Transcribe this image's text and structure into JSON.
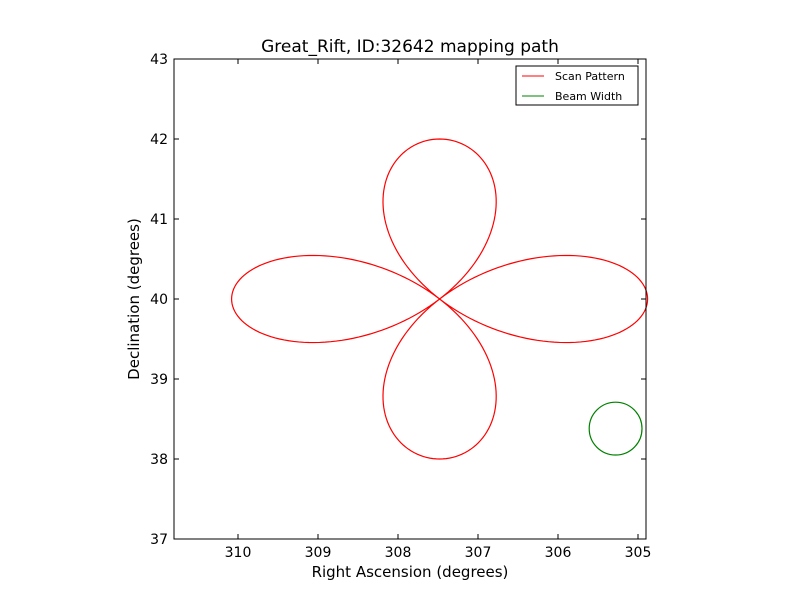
{
  "chart_data": {
    "type": "line",
    "title": "Great_Rift, ID:32642 mapping path",
    "xlabel": "Right Ascension (degrees)",
    "ylabel": "Declination (degrees)",
    "xlim": [
      310.8,
      304.9
    ],
    "ylim": [
      37,
      43
    ],
    "x_inverted": true,
    "xticks": [
      310,
      309,
      308,
      307,
      306,
      305
    ],
    "yticks": [
      37,
      38,
      39,
      40,
      41,
      42,
      43
    ],
    "grid": false,
    "legend_position": "top-right",
    "series": [
      {
        "name": "Scan Pattern",
        "color": "#ff0000",
        "center": [
          307.48,
          40.0
        ],
        "petal_radius_ra": 2.6,
        "petal_radius_dec": 2.0,
        "x_start": 310.08,
        "x_end": 310.04
      },
      {
        "name": "Beam Width",
        "color": "#008000",
        "center": [
          305.28,
          38.38
        ],
        "radius_dec": 0.33
      }
    ]
  }
}
